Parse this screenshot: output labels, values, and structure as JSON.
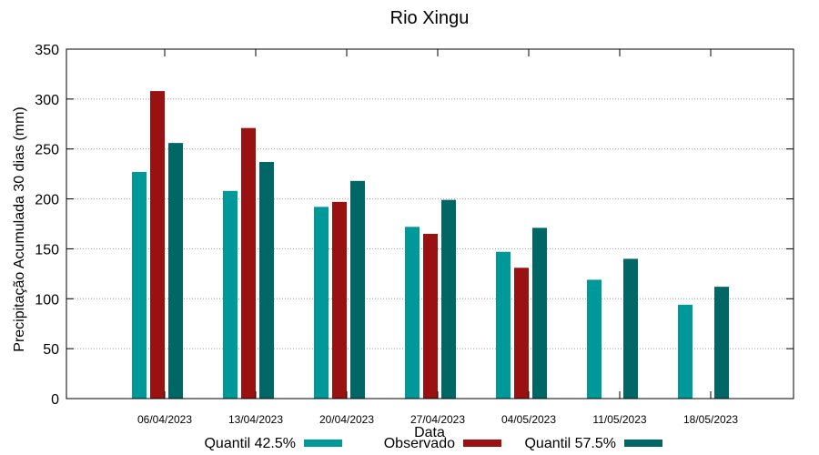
{
  "chart_data": {
    "type": "bar",
    "title": "Rio Xingu",
    "xlabel": "Data",
    "ylabel": "Precipitação Acumulada 30 dias (mm)",
    "ylim": [
      0,
      350
    ],
    "yticks": [
      0,
      50,
      100,
      150,
      200,
      250,
      300,
      350
    ],
    "grid": true,
    "legend_position": "bottom",
    "categories": [
      "06/04/2023",
      "13/04/2023",
      "20/04/2023",
      "27/04/2023",
      "04/05/2023",
      "11/05/2023",
      "18/05/2023"
    ],
    "series": [
      {
        "name": "Quantil 42.5%",
        "color": "#009999",
        "values": [
          227,
          208,
          192,
          172,
          147,
          119,
          94
        ]
      },
      {
        "name": "Observado",
        "color": "#991111",
        "values": [
          308,
          271,
          197,
          165,
          131,
          null,
          null
        ]
      },
      {
        "name": "Quantil 57.5%",
        "color": "#006666",
        "values": [
          256,
          237,
          218,
          199,
          171,
          140,
          112
        ]
      }
    ]
  }
}
